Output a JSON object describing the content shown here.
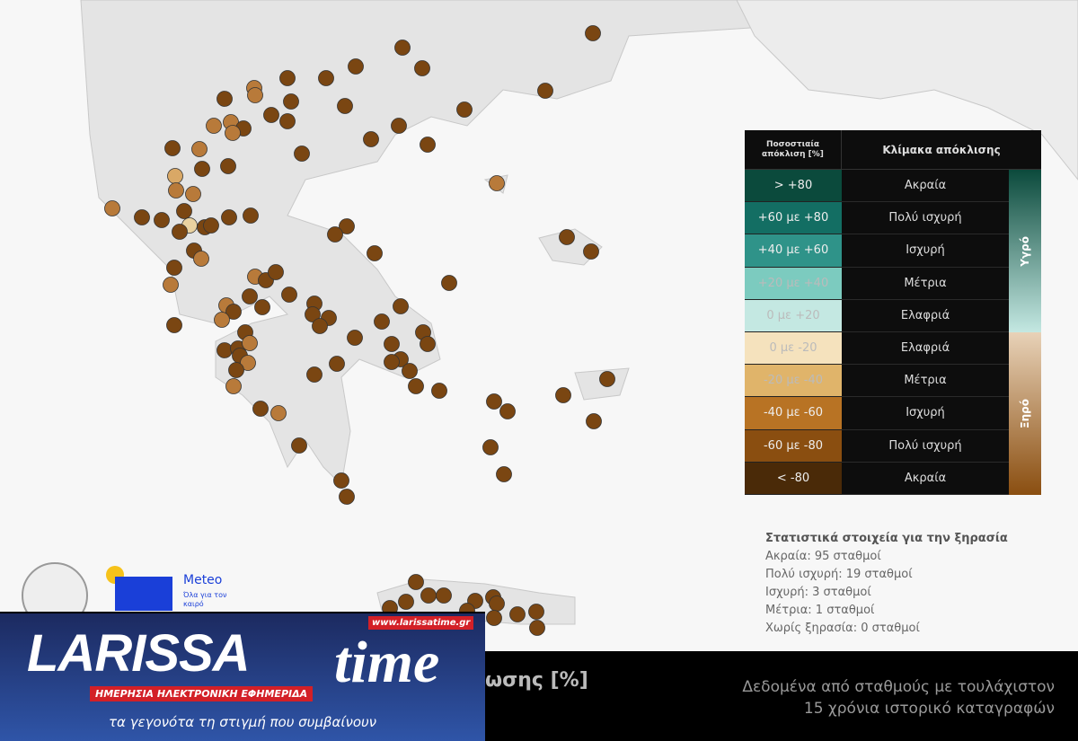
{
  "legend": {
    "col1_header": "Ποσοστιαία απόκλιση [%]",
    "col2_header": "Κλίμακα απόκλισης",
    "rows": [
      {
        "range": "> +80",
        "category": "Ακραία",
        "color": "#0b4a3c"
      },
      {
        "range": "+60 με +80",
        "category": "Πολύ ισχυρή",
        "color": "#136e63"
      },
      {
        "range": "+40 με +60",
        "category": "Ισχυρή",
        "color": "#2f9389"
      },
      {
        "range": "+20 με +40",
        "category": "Μέτρια",
        "color": "#7ccbbf"
      },
      {
        "range": "0 με +20",
        "category": "Ελαφριά",
        "color": "#c4e8e2"
      },
      {
        "range": "0 με -20",
        "category": "Ελαφριά",
        "color": "#f5e2bd"
      },
      {
        "range": "-20 με -40",
        "category": "Μέτρια",
        "color": "#e0b46a"
      },
      {
        "range": "-40 με -60",
        "category": "Ισχυρή",
        "color": "#b87324"
      },
      {
        "range": "-60 με -80",
        "category": "Πολύ ισχυρή",
        "color": "#8a4e10"
      },
      {
        "range": "< -80",
        "category": "Ακραία",
        "color": "#4a2a08"
      }
    ],
    "wet_label": "Υγρό",
    "dry_label": "Ξηρό"
  },
  "stats": {
    "title": "Στατιστικά στοιχεία για την ξηρασία",
    "lines": [
      "Ακραία: 95 σταθμοί",
      "Πολύ ισχυρή: 19 σταθμοί",
      "Ισχυρή: 3 σταθμοί",
      "Μέτρια: 1 σταθμοί",
      "Χωρίς ξηρασία: 0 σταθμοί"
    ]
  },
  "bottom": {
    "title_visible": "ωσης [%]",
    "note_line1": "Δεδομένα από σταθμούς με τουλάχιστον",
    "note_line2": "15 χρόνια ιστορικό καταγραφών"
  },
  "meteo": {
    "name": "Meteo",
    "tagline": "Όλα για τον καιρό"
  },
  "larissatime": {
    "logo": "LARISSA",
    "logo2": "time",
    "url": "www.larissatime.gr",
    "subtitle": "ΗΜΕΡΗΣΙΑ ΗΛΕΚΤΡΟΝΙΚΗ ΕΦΗΜΕΡΙΔΑ",
    "slogan": "τα γεγονότα τη στιγμή που συμβαίνουν"
  },
  "station_colors": {
    "extreme": "#7a4612",
    "very_strong": "#b87a3a",
    "strong": "#d9a866",
    "moderate": "#ead2a0"
  }
}
